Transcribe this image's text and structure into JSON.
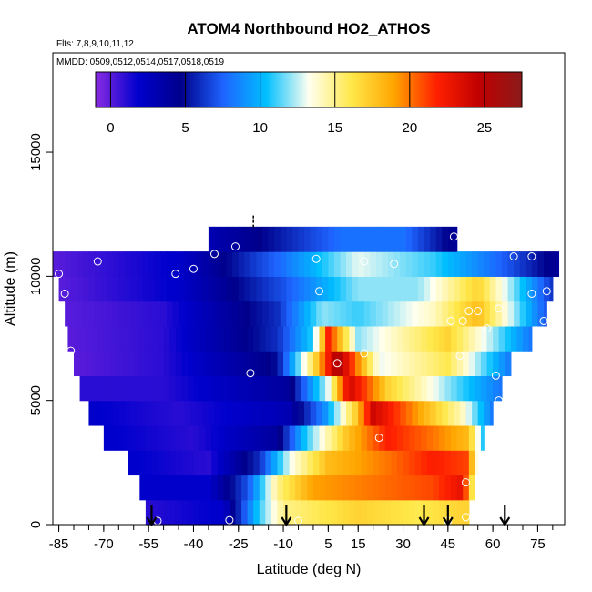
{
  "chart_data": {
    "type": "heatmap",
    "title": "ATOM4 Northbound HO2_ATHOS",
    "subtitle": "Flts: 7,8,9,10,11,12",
    "date_note": "MMDD: 0509,0512,0514,0517,0518,0519",
    "xlabel": "Latitude (deg N)",
    "ylabel": "Altitude (m)",
    "xlim": [
      -87,
      84
    ],
    "ylim": [
      0,
      19000
    ],
    "x_ticks": [
      -85,
      -70,
      -55,
      -40,
      -25,
      -10,
      5,
      15,
      30,
      45,
      60,
      75
    ],
    "x_minor_step": 5,
    "y_ticks": [
      0,
      5000,
      10000,
      15000
    ],
    "colorbar": {
      "range": [
        -1,
        27.5
      ],
      "ticks": [
        0,
        5,
        10,
        15,
        20,
        25
      ],
      "colors": [
        "#8a2be2",
        "#0000cd",
        "#00008b",
        "#1e64ff",
        "#00bfff",
        "#fffff0",
        "#ffe84a",
        "#ffa500",
        "#ff2000",
        "#c00000",
        "#8b1a1a"
      ]
    },
    "grid": false,
    "levels": [
      {
        "alt": 500,
        "start": -56,
        "end": 52,
        "vals": [
          {
            "x": -56,
            "v": 1
          },
          {
            "x": -30,
            "v": 2
          },
          {
            "x": -18,
            "v": 11
          },
          {
            "x": -10,
            "v": 15
          },
          {
            "x": 15,
            "v": 17
          },
          {
            "x": 35,
            "v": 16
          },
          {
            "x": 50,
            "v": 17
          }
        ]
      },
      {
        "alt": 1500,
        "start": -58,
        "end": 54,
        "vals": [
          {
            "x": -58,
            "v": 2
          },
          {
            "x": -35,
            "v": 2
          },
          {
            "x": -22,
            "v": 7
          },
          {
            "x": -12,
            "v": 15
          },
          {
            "x": 0,
            "v": 19
          },
          {
            "x": 20,
            "v": 20
          },
          {
            "x": 40,
            "v": 21
          },
          {
            "x": 50,
            "v": 23
          },
          {
            "x": 54,
            "v": 14
          }
        ]
      },
      {
        "alt": 2500,
        "start": -62,
        "end": 55,
        "vals": [
          {
            "x": -62,
            "v": 2
          },
          {
            "x": -35,
            "v": 1
          },
          {
            "x": -18,
            "v": 6
          },
          {
            "x": -8,
            "v": 13
          },
          {
            "x": 5,
            "v": 18
          },
          {
            "x": 25,
            "v": 20
          },
          {
            "x": 40,
            "v": 22
          },
          {
            "x": 52,
            "v": 21
          },
          {
            "x": 55,
            "v": 12
          }
        ]
      },
      {
        "alt": 3500,
        "start": -70,
        "end": 57,
        "vals": [
          {
            "x": -70,
            "v": 2
          },
          {
            "x": -40,
            "v": 1
          },
          {
            "x": -12,
            "v": 4
          },
          {
            "x": -2,
            "v": 11
          },
          {
            "x": 12,
            "v": 18
          },
          {
            "x": 25,
            "v": 22
          },
          {
            "x": 40,
            "v": 20
          },
          {
            "x": 52,
            "v": 18
          },
          {
            "x": 57,
            "v": 10
          }
        ]
      },
      {
        "alt": 4500,
        "start": -75,
        "end": 60,
        "vals": [
          {
            "x": -75,
            "v": 2
          },
          {
            "x": -45,
            "v": 1
          },
          {
            "x": -8,
            "v": 3
          },
          {
            "x": 4,
            "v": 9
          },
          {
            "x": 14,
            "v": 17
          },
          {
            "x": 20,
            "v": 24
          },
          {
            "x": 35,
            "v": 19
          },
          {
            "x": 50,
            "v": 14
          },
          {
            "x": 60,
            "v": 8
          }
        ]
      },
      {
        "alt": 5500,
        "start": -78,
        "end": 63,
        "vals": [
          {
            "x": -78,
            "v": 1
          },
          {
            "x": -50,
            "v": 1
          },
          {
            "x": -8,
            "v": 4
          },
          {
            "x": 5,
            "v": 13
          },
          {
            "x": 12,
            "v": 24
          },
          {
            "x": 25,
            "v": 17
          },
          {
            "x": 45,
            "v": 12
          },
          {
            "x": 63,
            "v": 8
          }
        ]
      },
      {
        "alt": 6500,
        "start": -80,
        "end": 66,
        "vals": [
          {
            "x": -80,
            "v": 0
          },
          {
            "x": -50,
            "v": 1
          },
          {
            "x": -12,
            "v": 5
          },
          {
            "x": 0,
            "v": 16
          },
          {
            "x": 8,
            "v": 26
          },
          {
            "x": 22,
            "v": 13
          },
          {
            "x": 45,
            "v": 16
          },
          {
            "x": 66,
            "v": 8
          }
        ]
      },
      {
        "alt": 7500,
        "start": -82,
        "end": 73,
        "vals": [
          {
            "x": -82,
            "v": 0
          },
          {
            "x": -50,
            "v": 1
          },
          {
            "x": -12,
            "v": 6
          },
          {
            "x": 0,
            "v": 11
          },
          {
            "x": 5,
            "v": 22
          },
          {
            "x": 15,
            "v": 12
          },
          {
            "x": 45,
            "v": 17
          },
          {
            "x": 73,
            "v": 8
          }
        ]
      },
      {
        "alt": 8500,
        "start": -83,
        "end": 78,
        "vals": [
          {
            "x": -83,
            "v": 0
          },
          {
            "x": -50,
            "v": 1
          },
          {
            "x": -12,
            "v": 6
          },
          {
            "x": 3,
            "v": 12
          },
          {
            "x": 15,
            "v": 11
          },
          {
            "x": 40,
            "v": 14
          },
          {
            "x": 55,
            "v": 18
          },
          {
            "x": 78,
            "v": 7
          }
        ]
      },
      {
        "alt": 9500,
        "start": -85,
        "end": 80,
        "vals": [
          {
            "x": -85,
            "v": 0
          },
          {
            "x": -45,
            "v": 2
          },
          {
            "x": -10,
            "v": 7
          },
          {
            "x": 15,
            "v": 12
          },
          {
            "x": 35,
            "v": 12
          },
          {
            "x": 55,
            "v": 17
          },
          {
            "x": 80,
            "v": 6
          }
        ]
      },
      {
        "alt": 10500,
        "start": -87,
        "end": 82,
        "vals": [
          {
            "x": -87,
            "v": 0
          },
          {
            "x": -45,
            "v": 2
          },
          {
            "x": -10,
            "v": 8
          },
          {
            "x": 15,
            "v": 13
          },
          {
            "x": 40,
            "v": 11
          },
          {
            "x": 60,
            "v": 8
          },
          {
            "x": 82,
            "v": 4
          }
        ]
      },
      {
        "alt": 11500,
        "start": -35,
        "end": 48,
        "vals": [
          {
            "x": -35,
            "v": 3
          },
          {
            "x": -15,
            "v": 5
          },
          {
            "x": 10,
            "v": 8
          },
          {
            "x": 30,
            "v": 8
          },
          {
            "x": 48,
            "v": 4
          }
        ]
      }
    ],
    "obs_points": [
      {
        "x": -85,
        "y": 10100
      },
      {
        "x": -72,
        "y": 10600
      },
      {
        "x": -83,
        "y": 9300
      },
      {
        "x": -81,
        "y": 7000
      },
      {
        "x": -80,
        "y": 4700
      },
      {
        "x": -46,
        "y": 10100
      },
      {
        "x": -40,
        "y": 10300
      },
      {
        "x": -33,
        "y": 10900
      },
      {
        "x": -26,
        "y": 11200
      },
      {
        "x": -21,
        "y": 6100
      },
      {
        "x": 1,
        "y": 10700
      },
      {
        "x": 2,
        "y": 9400
      },
      {
        "x": 8,
        "y": 6500
      },
      {
        "x": 17,
        "y": 6900
      },
      {
        "x": 17,
        "y": 10600
      },
      {
        "x": 22,
        "y": 3500
      },
      {
        "x": 27,
        "y": 10500
      },
      {
        "x": 47,
        "y": 11600
      },
      {
        "x": 54,
        "y": 11200
      },
      {
        "x": 50,
        "y": 8200
      },
      {
        "x": 46,
        "y": 8200
      },
      {
        "x": 52,
        "y": 8600
      },
      {
        "x": 55,
        "y": 8600
      },
      {
        "x": 49,
        "y": 6800
      },
      {
        "x": 58,
        "y": 7900
      },
      {
        "x": 62,
        "y": 8700
      },
      {
        "x": 67,
        "y": 10800
      },
      {
        "x": 73,
        "y": 10800
      },
      {
        "x": 73,
        "y": 9300
      },
      {
        "x": 78,
        "y": 9400
      },
      {
        "x": 77,
        "y": 8200
      },
      {
        "x": 61,
        "y": 6000
      },
      {
        "x": 62,
        "y": 5000
      },
      {
        "x": 51,
        "y": 1700
      },
      {
        "x": 51,
        "y": 300
      },
      {
        "x": 45,
        "y": 150
      },
      {
        "x": -52,
        "y": 150
      },
      {
        "x": -28,
        "y": 180
      },
      {
        "x": -5,
        "y": 150
      }
    ],
    "arrows_lat": [
      -54,
      -9,
      37,
      45,
      64
    ],
    "tropopause_marker_lat": -20
  }
}
